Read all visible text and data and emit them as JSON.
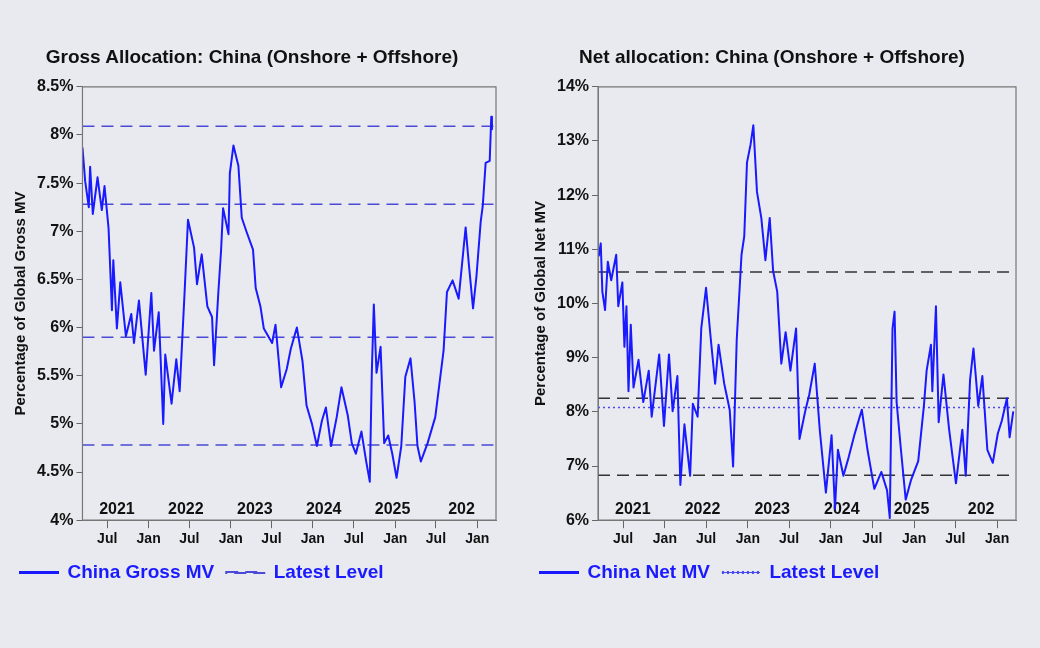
{
  "chart_data": [
    {
      "type": "line",
      "title": "Gross Allocation: China (Onshore + Offshore)",
      "ylabel": "Percentage of Global Gross MV",
      "legend": "bottom",
      "marker": "none",
      "grid": false,
      "x": [
        "2021-03-13",
        "2021-03-25",
        "2021-04-10",
        "2021-04-16",
        "2021-04-28",
        "2021-05-19",
        "2021-06-07",
        "2021-06-19",
        "2021-07-07",
        "2021-07-22",
        "2021-07-28",
        "2021-08-13",
        "2021-08-28",
        "2021-09-22",
        "2021-10-16",
        "2021-10-28",
        "2021-11-19",
        "2021-12-19",
        "2022-01-13",
        "2022-01-25",
        "2022-02-15",
        "2022-03-07",
        "2022-03-16",
        "2022-04-13",
        "2022-05-04",
        "2022-05-19",
        "2022-06-10",
        "2022-06-25",
        "2022-07-22",
        "2022-08-04",
        "2022-08-25",
        "2022-09-19",
        "2022-10-10",
        "2022-10-19",
        "2022-11-07",
        "2022-11-19",
        "2022-11-28",
        "2022-12-22",
        "2022-12-28",
        "2023-01-13",
        "2023-02-04",
        "2023-02-19",
        "2023-03-13",
        "2023-04-10",
        "2023-04-22",
        "2023-05-13",
        "2023-05-28",
        "2023-07-04",
        "2023-07-19",
        "2023-08-13",
        "2023-09-07",
        "2023-09-25",
        "2023-10-22",
        "2023-11-16",
        "2023-12-04",
        "2023-12-28",
        "2024-01-19",
        "2024-02-10",
        "2024-02-28",
        "2024-03-22",
        "2024-04-16",
        "2024-05-07",
        "2024-06-04",
        "2024-06-22",
        "2024-07-10",
        "2024-08-04",
        "2024-08-25",
        "2024-09-10",
        "2024-09-19",
        "2024-09-28",
        "2024-10-10",
        "2024-10-28",
        "2024-11-13",
        "2024-12-01",
        "2024-12-19",
        "2025-01-07",
        "2025-01-28",
        "2025-02-15",
        "2025-03-10",
        "2025-03-28",
        "2025-04-10",
        "2025-04-25",
        "2025-05-25",
        "2025-06-28",
        "2025-08-04",
        "2025-08-19",
        "2025-09-13",
        "2025-10-10",
        "2025-11-10",
        "2025-11-25",
        "2025-12-13",
        "2025-12-28",
        "2026-01-16",
        "2026-01-25",
        "2026-02-07",
        "2026-02-25",
        "2026-03-04",
        "2026-03-07"
      ],
      "series": [
        {
          "name": "China Gross MV",
          "color": "#1a1aff",
          "values": [
            7.87,
            7.52,
            7.25,
            7.67,
            7.18,
            7.56,
            7.22,
            7.47,
            7.03,
            6.18,
            6.7,
            5.99,
            6.47,
            5.91,
            6.14,
            5.84,
            6.28,
            5.51,
            6.36,
            5.76,
            6.16,
            5.0,
            5.72,
            5.21,
            5.67,
            5.34,
            6.37,
            7.12,
            6.83,
            6.45,
            6.76,
            6.22,
            6.11,
            5.61,
            6.37,
            6.8,
            7.24,
            6.97,
            7.6,
            7.89,
            7.68,
            7.14,
            6.99,
            6.81,
            6.41,
            6.22,
            5.99,
            5.84,
            6.03,
            5.38,
            5.57,
            5.78,
            6.0,
            5.65,
            5.19,
            5.0,
            4.77,
            5.03,
            5.17,
            4.77,
            5.07,
            5.38,
            5.09,
            4.8,
            4.69,
            4.92,
            4.61,
            4.4,
            5.53,
            6.24,
            5.53,
            5.8,
            4.8,
            4.88,
            4.69,
            4.44,
            4.77,
            5.49,
            5.68,
            5.23,
            4.77,
            4.61,
            4.8,
            5.07,
            5.76,
            6.37,
            6.49,
            6.3,
            7.04,
            6.64,
            6.2,
            6.53,
            7.1,
            7.26,
            7.71,
            7.73,
            8.19,
            8.06
          ]
        }
      ],
      "xlim": [
        "2021-03-13",
        "2026-03-25"
      ],
      "xticks": [
        {
          "value": "2021-07-01",
          "label": "Jul"
        },
        {
          "value": "2022-01-01",
          "label": "Jan"
        },
        {
          "value": "2022-07-01",
          "label": "Jul"
        },
        {
          "value": "2023-01-01",
          "label": "Jan"
        },
        {
          "value": "2023-07-01",
          "label": "Jul"
        },
        {
          "value": "2024-01-01",
          "label": "Jan"
        },
        {
          "value": "2024-07-01",
          "label": "Jul"
        },
        {
          "value": "2025-01-01",
          "label": "Jan"
        },
        {
          "value": "2025-07-01",
          "label": "Jul"
        },
        {
          "value": "2026-01-01",
          "label": "Jan"
        }
      ],
      "ylim": [
        4,
        8.5
      ],
      "yticks": [
        {
          "value": 4,
          "label": "4%"
        },
        {
          "value": 4.5,
          "label": "4.5%"
        },
        {
          "value": 5,
          "label": "5%"
        },
        {
          "value": 5.5,
          "label": "5.5%"
        },
        {
          "value": 6,
          "label": "6%"
        },
        {
          "value": 6.5,
          "label": "6.5%"
        },
        {
          "value": 7,
          "label": "7%"
        },
        {
          "value": 7.5,
          "label": "7.5%"
        },
        {
          "value": 8,
          "label": "8%"
        },
        {
          "value": 8.5,
          "label": "8.5%"
        }
      ],
      "ref_lines": [
        {
          "axis": "y",
          "value": 8.09,
          "label": "Latest Level",
          "color": "#4a4ad6",
          "line_style": "dashed"
        },
        {
          "axis": "y",
          "value": 7.28,
          "color": "#4a4ad6",
          "line_style": "dashed"
        },
        {
          "axis": "y",
          "value": 5.9,
          "color": "#4a4ad6",
          "line_style": "dashed"
        },
        {
          "axis": "y",
          "value": 4.78,
          "color": "#4a4ad6",
          "line_style": "dashed"
        }
      ],
      "annotations": [
        "2021",
        "2022",
        "2023",
        "2024",
        "2025",
        "202"
      ]
    },
    {
      "type": "line",
      "title": "Net allocation: China (Onshore + Offshore)",
      "ylabel": "Percentage of Global Net MV",
      "legend": "bottom",
      "marker": "none",
      "grid": false,
      "x": [
        "2021-03-16",
        "2021-03-25",
        "2021-04-01",
        "2021-04-13",
        "2021-04-25",
        "2021-05-10",
        "2021-06-01",
        "2021-06-10",
        "2021-06-28",
        "2021-07-07",
        "2021-07-16",
        "2021-07-25",
        "2021-08-04",
        "2021-08-16",
        "2021-09-07",
        "2021-09-28",
        "2021-10-22",
        "2021-11-04",
        "2021-12-07",
        "2021-12-28",
        "2022-01-19",
        "2022-02-04",
        "2022-02-25",
        "2022-03-10",
        "2022-03-28",
        "2022-04-22",
        "2022-05-04",
        "2022-05-25",
        "2022-06-10",
        "2022-07-01",
        "2022-07-22",
        "2022-08-10",
        "2022-08-25",
        "2022-09-19",
        "2022-10-13",
        "2022-10-28",
        "2022-11-13",
        "2022-12-04",
        "2022-12-16",
        "2022-12-28",
        "2023-01-13",
        "2023-01-25",
        "2023-02-10",
        "2023-03-01",
        "2023-03-19",
        "2023-04-07",
        "2023-04-22",
        "2023-05-10",
        "2023-05-28",
        "2023-06-16",
        "2023-07-07",
        "2023-08-01",
        "2023-08-16",
        "2023-09-10",
        "2023-09-28",
        "2023-10-22",
        "2023-11-13",
        "2023-12-10",
        "2024-01-04",
        "2024-01-19",
        "2024-02-01",
        "2024-02-25",
        "2024-03-19",
        "2024-04-13",
        "2024-05-16",
        "2024-06-10",
        "2024-07-10",
        "2024-08-10",
        "2024-09-04",
        "2024-09-16",
        "2024-09-28",
        "2024-10-07",
        "2024-10-16",
        "2024-11-04",
        "2024-11-25",
        "2024-12-19",
        "2025-01-19",
        "2025-02-13",
        "2025-02-25",
        "2025-03-16",
        "2025-03-22",
        "2025-04-07",
        "2025-04-19",
        "2025-05-10",
        "2025-06-04",
        "2025-07-04",
        "2025-08-01",
        "2025-08-16",
        "2025-09-04",
        "2025-09-19",
        "2025-10-10",
        "2025-10-28",
        "2025-11-19",
        "2025-12-13",
        "2026-01-04",
        "2026-01-22",
        "2026-02-13",
        "2026-02-25",
        "2026-03-13"
      ],
      "series": [
        {
          "name": "China Net MV",
          "color": "#1a1aff",
          "values": [
            10.87,
            11.11,
            10.22,
            9.88,
            10.77,
            10.43,
            10.9,
            9.95,
            10.39,
            9.2,
            9.95,
            8.38,
            9.61,
            8.45,
            8.96,
            8.18,
            8.76,
            7.91,
            9.06,
            7.74,
            9.06,
            8.01,
            8.66,
            6.65,
            7.77,
            6.82,
            8.15,
            7.91,
            9.54,
            10.29,
            9.34,
            8.52,
            9.24,
            8.52,
            8.04,
            6.99,
            9.34,
            10.9,
            11.24,
            12.6,
            12.94,
            13.29,
            12.06,
            11.58,
            10.8,
            11.58,
            10.6,
            10.22,
            8.89,
            9.47,
            8.76,
            9.54,
            7.5,
            8.01,
            8.32,
            8.89,
            7.67,
            6.51,
            7.57,
            6.21,
            7.3,
            6.82,
            7.16,
            7.57,
            8.04,
            7.3,
            6.58,
            6.89,
            6.55,
            6.04,
            9.54,
            9.85,
            8.18,
            7.3,
            6.38,
            6.75,
            7.09,
            8.11,
            8.76,
            9.24,
            8.38,
            9.95,
            7.81,
            8.69,
            7.67,
            6.68,
            7.67,
            6.82,
            8.59,
            9.17,
            8.11,
            8.66,
            7.3,
            7.06,
            7.6,
            7.84,
            8.25,
            7.53,
            8.01
          ]
        }
      ],
      "xlim": [
        "2021-03-13",
        "2026-03-25"
      ],
      "xticks": [
        {
          "value": "2021-07-01",
          "label": "Jul"
        },
        {
          "value": "2022-01-01",
          "label": "Jan"
        },
        {
          "value": "2022-07-01",
          "label": "Jul"
        },
        {
          "value": "2023-01-01",
          "label": "Jan"
        },
        {
          "value": "2023-07-01",
          "label": "Jul"
        },
        {
          "value": "2024-01-01",
          "label": "Jan"
        },
        {
          "value": "2024-07-01",
          "label": "Jul"
        },
        {
          "value": "2025-01-01",
          "label": "Jan"
        },
        {
          "value": "2025-07-01",
          "label": "Jul"
        },
        {
          "value": "2026-01-01",
          "label": "Jan"
        }
      ],
      "ylim": [
        6,
        14
      ],
      "yticks": [
        {
          "value": 6,
          "label": "6%"
        },
        {
          "value": 7,
          "label": "7%"
        },
        {
          "value": 8,
          "label": "8%"
        },
        {
          "value": 9,
          "label": "9%"
        },
        {
          "value": 10,
          "label": "10%"
        },
        {
          "value": 11,
          "label": "11%"
        },
        {
          "value": 12,
          "label": "12%"
        },
        {
          "value": 13,
          "label": "13%"
        },
        {
          "value": 14,
          "label": "14%"
        }
      ],
      "ref_lines": [
        {
          "axis": "y",
          "value": 10.58,
          "color": "#333333",
          "line_style": "dashed"
        },
        {
          "axis": "y",
          "value": 8.25,
          "color": "#333333",
          "line_style": "dashed"
        },
        {
          "axis": "y",
          "value": 8.08,
          "label": "Latest Level",
          "color": "#4a4aee",
          "line_style": "dotted"
        },
        {
          "axis": "y",
          "value": 6.83,
          "color": "#333333",
          "line_style": "dashed"
        }
      ],
      "annotations": [
        "2021",
        "2022",
        "2023",
        "2024",
        "2025",
        "202"
      ]
    }
  ]
}
